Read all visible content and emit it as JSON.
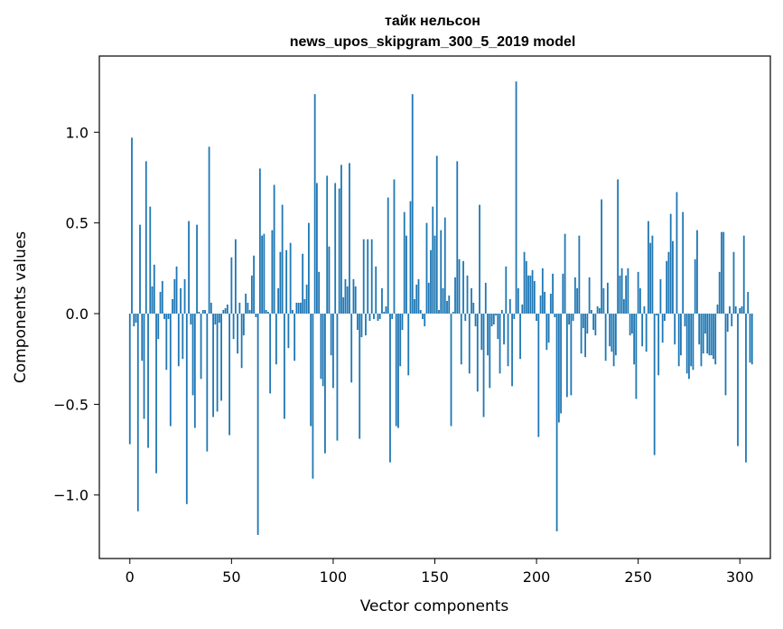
{
  "chart_data": {
    "type": "bar",
    "title": "тайк нельсон",
    "subtitle": "news_upos_skipgram_300_5_2019 model",
    "xlabel": "Vector components",
    "ylabel": "Components values",
    "xlim": [
      -15,
      315
    ],
    "ylim": [
      -1.35,
      1.42
    ],
    "xticks": [
      0,
      50,
      100,
      150,
      200,
      250,
      300
    ],
    "yticks": [
      -1.0,
      -0.5,
      0.0,
      0.5,
      1.0
    ],
    "ytick_labels": [
      "−1.0",
      "−0.5",
      "0.0",
      "0.5",
      "1.0"
    ],
    "bar_color": "#1f77b4",
    "values": [
      -0.72,
      0.97,
      -0.07,
      -0.05,
      -1.09,
      0.49,
      -0.26,
      -0.58,
      0.84,
      -0.74,
      0.59,
      0.15,
      0.27,
      -0.88,
      -0.14,
      0.12,
      0.18,
      -0.03,
      -0.31,
      -0.03,
      -0.62,
      0.08,
      0.19,
      0.26,
      -0.29,
      0.14,
      -0.25,
      0.19,
      -1.05,
      0.51,
      -0.06,
      -0.45,
      -0.63,
      0.49,
      0.01,
      -0.36,
      0.02,
      0.02,
      -0.76,
      0.92,
      0.06,
      -0.57,
      -0.06,
      -0.54,
      -0.05,
      -0.48,
      0.02,
      0.03,
      0.05,
      -0.67,
      0.31,
      -0.14,
      0.41,
      -0.22,
      0.06,
      -0.3,
      -0.12,
      0.11,
      0.06,
      0.02,
      0.21,
      0.32,
      -0.02,
      -1.22,
      0.8,
      0.43,
      0.44,
      0.02,
      0.01,
      -0.44,
      0.46,
      0.71,
      -0.28,
      0.14,
      0.34,
      0.6,
      -0.58,
      0.35,
      -0.19,
      0.39,
      0.02,
      -0.26,
      0.06,
      0.06,
      0.06,
      0.33,
      0.08,
      0.16,
      0.5,
      -0.62,
      -0.91,
      1.21,
      0.72,
      0.23,
      -0.36,
      -0.4,
      -0.77,
      0.76,
      0.37,
      -0.23,
      -0.41,
      0.72,
      -0.7,
      0.69,
      0.82,
      0.09,
      0.19,
      0.15,
      0.83,
      -0.38,
      0.19,
      0.15,
      -0.09,
      -0.69,
      -0.13,
      0.41,
      -0.12,
      0.41,
      -0.04,
      0.41,
      -0.03,
      0.26,
      -0.04,
      -0.03,
      0.14,
      0.01,
      0.04,
      0.64,
      -0.82,
      -0.03,
      0.74,
      -0.62,
      -0.63,
      -0.29,
      -0.09,
      0.56,
      0.43,
      -0.34,
      0.62,
      1.21,
      0.08,
      0.16,
      0.19,
      0.02,
      -0.03,
      -0.07,
      0.5,
      0.17,
      0.35,
      0.59,
      0.43,
      0.87,
      0.02,
      0.46,
      0.14,
      0.53,
      0.07,
      0.1,
      -0.62,
      0.01,
      0.2,
      0.84,
      0.3,
      -0.28,
      0.29,
      -0.04,
      0.21,
      -0.33,
      0.14,
      0.06,
      -0.07,
      -0.43,
      0.6,
      -0.2,
      -0.57,
      0.17,
      -0.23,
      -0.41,
      -0.07,
      -0.06,
      -0.01,
      -0.14,
      -0.33,
      0.02,
      -0.17,
      0.26,
      -0.29,
      0.08,
      -0.4,
      -0.03,
      1.28,
      0.14,
      -0.25,
      0.05,
      0.34,
      0.29,
      0.21,
      0.21,
      0.24,
      0.18,
      -0.04,
      -0.68,
      0.1,
      0.25,
      0.12,
      -0.2,
      -0.16,
      0.11,
      0.22,
      -0.02,
      -1.2,
      -0.6,
      -0.55,
      0.22,
      0.44,
      -0.46,
      -0.06,
      -0.45,
      -0.04,
      0.2,
      0.14,
      0.43,
      -0.22,
      -0.08,
      -0.24,
      -0.11,
      0.2,
      0.02,
      -0.09,
      -0.12,
      0.04,
      0.03,
      0.63,
      0.14,
      -0.26,
      0.17,
      -0.18,
      -0.21,
      -0.29,
      -0.23,
      0.74,
      0.21,
      0.25,
      0.08,
      0.21,
      0.25,
      -0.12,
      -0.11,
      -0.28,
      -0.47,
      0.23,
      0.14,
      -0.18,
      0.04,
      -0.21,
      0.51,
      0.39,
      0.43,
      -0.78,
      -0.01,
      -0.34,
      0.19,
      -0.16,
      -0.04,
      0.29,
      0.34,
      0.55,
      0.4,
      -0.17,
      0.67,
      -0.29,
      -0.23,
      0.56,
      -0.07,
      -0.33,
      -0.36,
      -0.29,
      -0.31,
      0.3,
      0.46,
      -0.17,
      -0.29,
      -0.22,
      -0.11,
      -0.22,
      -0.23,
      -0.23,
      -0.25,
      -0.28,
      0.05,
      0.23,
      0.45,
      0.45,
      -0.45,
      -0.1,
      0.04,
      -0.07,
      0.34,
      0.04,
      -0.73,
      0.03,
      0.04,
      0.43,
      -0.82,
      0.12,
      -0.27,
      -0.28
    ]
  }
}
